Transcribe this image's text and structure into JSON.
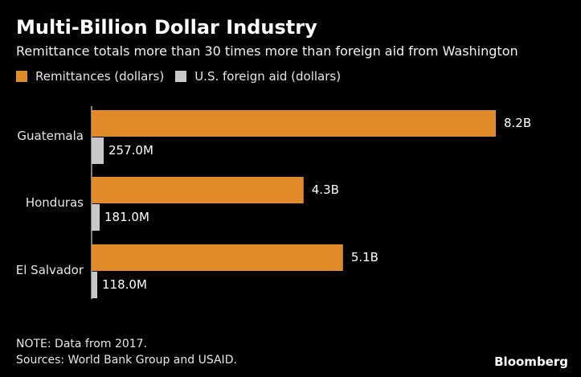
{
  "header": {
    "title": "Multi-Billion Dollar Industry",
    "subtitle": "Remittance totals more than 30 times more than foreign aid from Washington"
  },
  "legend": [
    {
      "label": "Remittances (dollars)",
      "color": "#e08a2a"
    },
    {
      "label": "U.S. foreign aid (dollars)",
      "color": "#c8c8c8"
    }
  ],
  "chart_data": {
    "type": "bar",
    "orientation": "horizontal",
    "title": "Multi-Billion Dollar Industry",
    "subtitle": "Remittance totals more than 30 times more than foreign aid from Washington",
    "categories": [
      "Guatemala",
      "Honduras",
      "El Salvador"
    ],
    "series": [
      {
        "name": "Remittances (dollars)",
        "color": "#e08a2a",
        "values": [
          8200000000,
          4300000000,
          5100000000
        ],
        "labels": [
          "8.2B",
          "4.3B",
          "5.1B"
        ]
      },
      {
        "name": "U.S. foreign aid (dollars)",
        "color": "#c8c8c8",
        "values": [
          257000000,
          181000000,
          118000000
        ],
        "labels": [
          "257.0M",
          "181.0M",
          "118.0M"
        ]
      }
    ],
    "xlim": [
      0,
      8200000000
    ],
    "xlabel": "",
    "ylabel": "",
    "grid": false,
    "legend_position": "top-left"
  },
  "footer": {
    "note": "NOTE: Data from 2017.",
    "sources": "Sources: World Bank Group and USAID.",
    "brand": "Bloomberg"
  }
}
